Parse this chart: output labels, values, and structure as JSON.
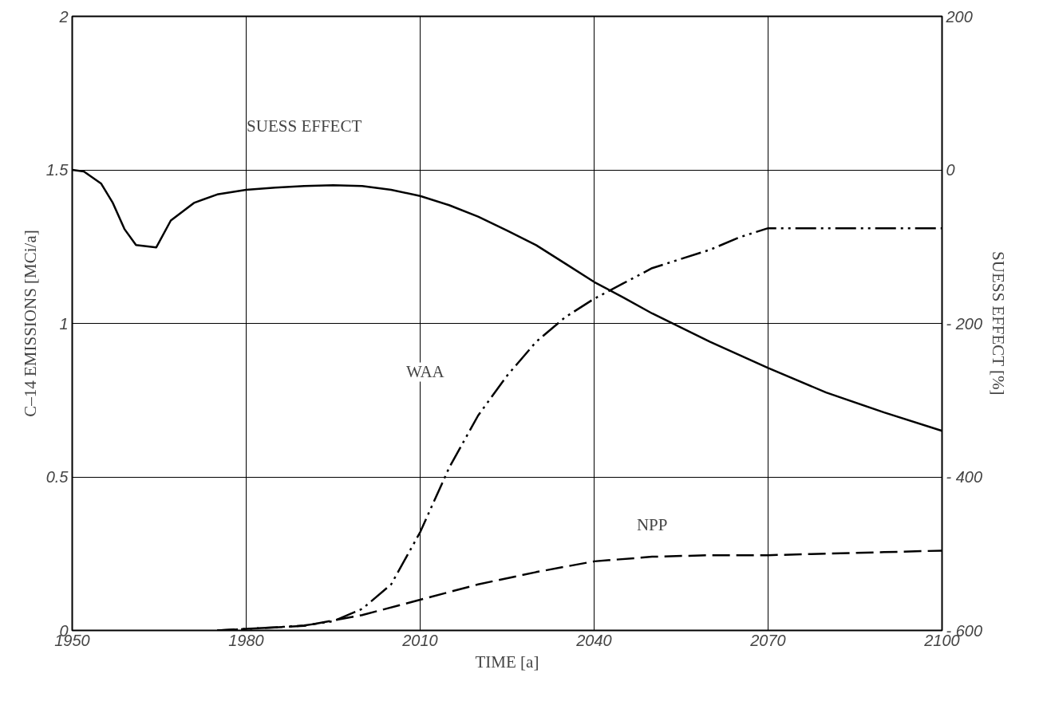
{
  "chart_data": {
    "type": "line",
    "xlabel": "TIME [a]",
    "ylabel": "C–14 EMISSIONS [MCi/a]",
    "y2label": "SUESS EFFECT [%]",
    "xlim": [
      1950,
      2100
    ],
    "xticks": [
      1950,
      1980,
      2010,
      2040,
      2070,
      2100
    ],
    "ylim": [
      0,
      2
    ],
    "yticks": [
      0,
      0.5,
      1,
      1.5,
      2
    ],
    "y2lim": [
      -600,
      200
    ],
    "y2ticks": [
      {
        "value": 200,
        "label": "200"
      },
      {
        "value": 0,
        "label": "0"
      },
      {
        "value": -200,
        "label": "- 200"
      },
      {
        "value": -400,
        "label": "- 400"
      },
      {
        "value": -600,
        "label": "- 600"
      }
    ],
    "grid": true,
    "series": [
      {
        "name": "SUESS EFFECT",
        "color": "#000000",
        "axis": "y2",
        "line_style": "solid",
        "x": [
          1950,
          1952,
          1955,
          1957,
          1959,
          1961,
          1964.5,
          1967,
          1971,
          1975,
          1980,
          1985,
          1990,
          1995,
          2000,
          2005,
          2010,
          2015,
          2020,
          2025,
          2030,
          2035,
          2040,
          2045,
          2050,
          2060,
          2070,
          2080,
          2090,
          2100
        ],
        "values": [
          0,
          -2,
          -18,
          -43,
          -77,
          -98,
          -101,
          -66,
          -43,
          -32,
          -26,
          -23,
          -21,
          -20,
          -21,
          -26,
          -34,
          -46,
          -61,
          -79,
          -98,
          -122,
          -146,
          -166,
          -187,
          -224,
          -258,
          -290,
          -316,
          -340
        ]
      },
      {
        "name": "WAA",
        "color": "#000000",
        "line_style": "dashdot",
        "x": [
          1975,
          1985,
          1990,
          1995,
          2000,
          2005,
          2010,
          2015,
          2020,
          2025,
          2030,
          2035,
          2040,
          2045,
          2050,
          2055,
          2060,
          2065,
          2070,
          2080,
          2090,
          2100
        ],
        "values": [
          0,
          0.01,
          0.016,
          0.03,
          0.07,
          0.15,
          0.32,
          0.53,
          0.7,
          0.83,
          0.94,
          1.02,
          1.08,
          1.13,
          1.18,
          1.21,
          1.24,
          1.28,
          1.31,
          1.31,
          1.31,
          1.31
        ]
      },
      {
        "name": "NPP",
        "color": "#000000",
        "line_style": "dashed",
        "x": [
          1975,
          1980,
          1990,
          2000,
          2010,
          2020,
          2030,
          2040,
          2050,
          2060,
          2070,
          2080,
          2090,
          2100
        ],
        "values": [
          0,
          0.005,
          0.015,
          0.05,
          0.1,
          0.15,
          0.19,
          0.225,
          0.24,
          0.245,
          0.245,
          0.25,
          0.255,
          0.26
        ]
      }
    ]
  }
}
